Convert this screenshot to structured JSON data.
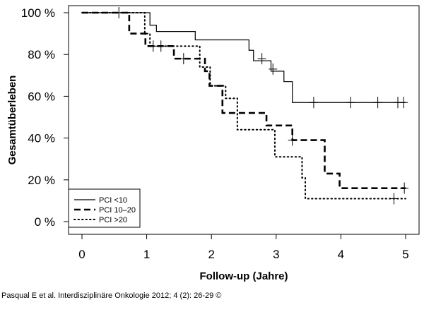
{
  "citation": "Pasqual E et al. Interdisziplinäre Onkologie 2012; 4 (2): 26-29 ©",
  "chart_data": {
    "type": "line",
    "subtype": "kaplan-meier-step",
    "title": "",
    "xlabel": "Follow-up (Jahre)",
    "ylabel": "Gesamtüberleben",
    "xlim": [
      0,
      5
    ],
    "ylim": [
      0,
      100
    ],
    "xticks": [
      "0",
      "1",
      "2",
      "3",
      "4",
      "5"
    ],
    "yticks": [
      "0 %",
      "20 %",
      "40 %",
      "60 %",
      "80 %",
      "100 %"
    ],
    "grid": false,
    "legend_position": "bottom-left",
    "series": [
      {
        "name": "PCI <10",
        "line_style": "solid",
        "x": [
          0,
          1.0,
          1.05,
          1.15,
          1.75,
          2.5,
          2.58,
          2.65,
          2.92,
          3.12,
          3.25,
          5.0
        ],
        "y": [
          100,
          100,
          94,
          91,
          87,
          87,
          82,
          77,
          72,
          67,
          57,
          57
        ],
        "censored": [
          [
            0.57,
            100
          ],
          [
            2.78,
            78
          ],
          [
            2.95,
            73
          ],
          [
            3.58,
            57
          ],
          [
            4.15,
            57
          ],
          [
            4.57,
            57
          ],
          [
            4.88,
            57
          ],
          [
            4.97,
            57
          ]
        ]
      },
      {
        "name": "PCI 10–20",
        "line_style": "dashed",
        "x": [
          0,
          0.73,
          0.98,
          1.42,
          1.9,
          1.97,
          2.17,
          2.58,
          2.85,
          3.25,
          3.75,
          3.98,
          5.0
        ],
        "y": [
          100,
          90,
          84,
          78,
          72,
          65,
          52,
          52,
          46,
          39,
          23,
          16,
          16
        ],
        "censored": [
          [
            1.22,
            84
          ],
          [
            1.57,
            78
          ],
          [
            3.25,
            39
          ],
          [
            4.98,
            16
          ]
        ]
      },
      {
        "name": "PCI >20",
        "line_style": "dotted",
        "x": [
          0,
          0.97,
          1.05,
          1.2,
          1.82,
          1.98,
          2.22,
          2.4,
          2.75,
          2.98,
          3.4,
          3.45,
          5.0
        ],
        "y": [
          100,
          90,
          84,
          84,
          74,
          65,
          59,
          44,
          44,
          31,
          21,
          11,
          11
        ],
        "censored": [
          [
            1.1,
            84
          ],
          [
            4.82,
            11
          ]
        ]
      }
    ]
  }
}
